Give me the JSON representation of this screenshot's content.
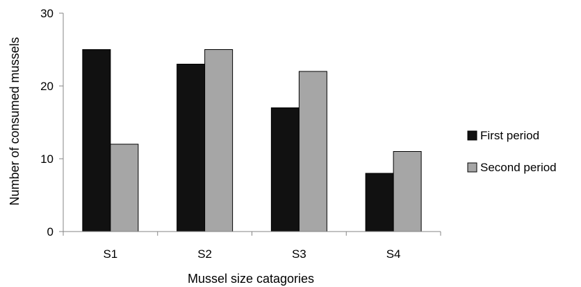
{
  "chart_data": {
    "type": "bar",
    "title": "",
    "xlabel": "Mussel size catagories",
    "ylabel": "Number of consumed mussels",
    "categories": [
      "S1",
      "S2",
      "S3",
      "S4"
    ],
    "series": [
      {
        "name": "First period",
        "values": [
          25,
          23,
          17,
          8
        ],
        "color": "#111111"
      },
      {
        "name": "Second period",
        "values": [
          12,
          25,
          22,
          11
        ],
        "color": "#a6a6a6"
      }
    ],
    "ylim": [
      0,
      30
    ],
    "yticks": [
      0,
      10,
      20,
      30
    ],
    "grid": false,
    "legend_position": "right"
  }
}
